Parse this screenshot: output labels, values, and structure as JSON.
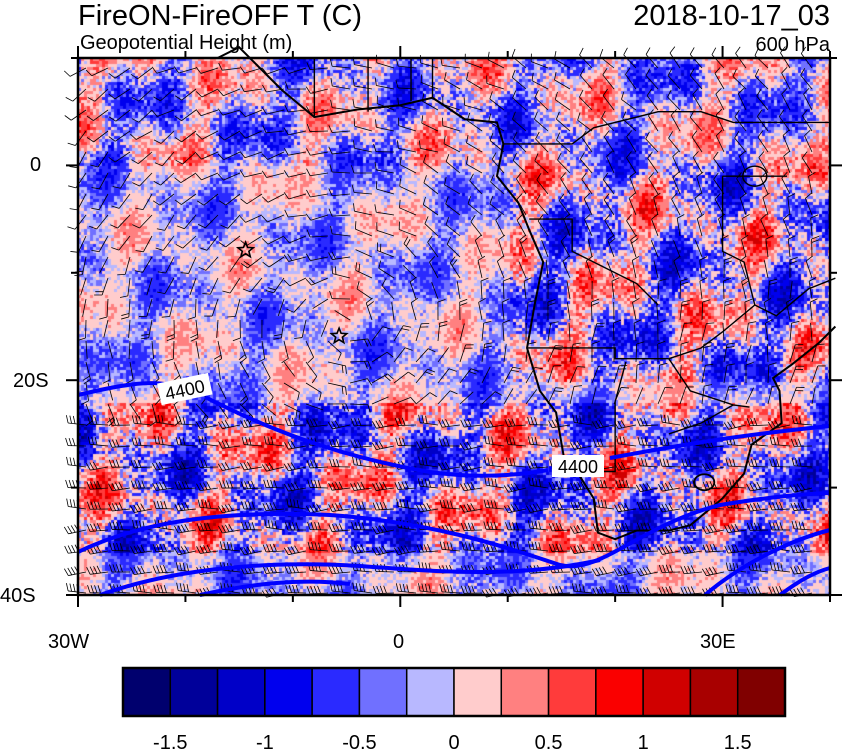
{
  "header": {
    "title": "FireON-FireOFF T (C)",
    "subtitle": "Geopotential Height (m)",
    "valid_time": "2018-10-17_03",
    "level": "600 hPa"
  },
  "map": {
    "region": "South Atlantic / Southern Africa",
    "lon_range": [
      -30,
      40
    ],
    "lat_range": [
      -40,
      10
    ],
    "x_tick_labels": [
      "30W",
      "0",
      "30E"
    ],
    "y_tick_labels": [
      "0",
      "20S",
      "40S"
    ],
    "contour_labels": [
      "4400",
      "4400"
    ],
    "markers": [
      {
        "icon": "star-icon",
        "lon": -14.4,
        "lat": -7.9
      },
      {
        "icon": "star-icon",
        "lon": -5.7,
        "lat": -15.9
      }
    ],
    "contour_color": "#0000ff",
    "overlay": "wind barbs"
  },
  "colorbar": {
    "colors": [
      "#00006e",
      "#00009a",
      "#0000c8",
      "#0000ee",
      "#2a2aff",
      "#7070ff",
      "#b8b8ff",
      "#ffcccc",
      "#ff8080",
      "#ff3b3b",
      "#fa0000",
      "#d00000",
      "#a80000",
      "#800000"
    ],
    "levels": [
      -1.5,
      -1.25,
      -1,
      -0.75,
      -0.5,
      -0.25,
      0,
      0.25,
      0.5,
      0.75,
      1,
      1.25,
      1.5
    ],
    "labels": [
      "-1.5",
      "-1",
      "-0.5",
      "0",
      "0.5",
      "1",
      "1.5"
    ]
  }
}
